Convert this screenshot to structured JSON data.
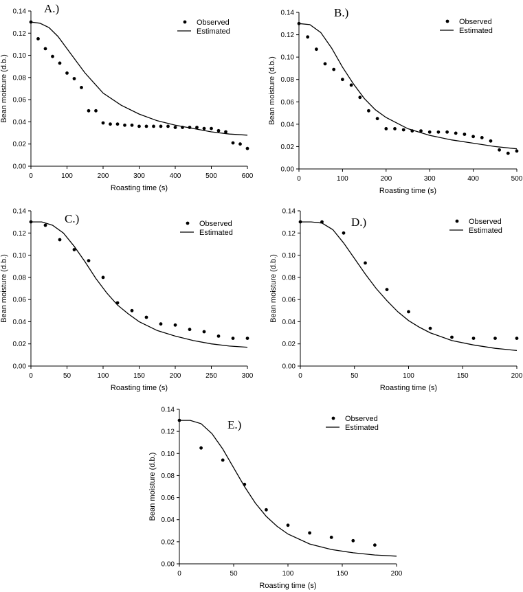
{
  "figure": {
    "y_tick_format_decimals": 2
  },
  "chart_data": [
    {
      "panel": "A.)",
      "type": "scatter",
      "xlabel": "Roasting time (s)",
      "ylabel": "Bean moisture (d.b.)",
      "xlim": [
        0,
        600
      ],
      "ylim": [
        0,
        0.14
      ],
      "xticks": [
        0,
        100,
        200,
        300,
        400,
        500,
        600
      ],
      "yticks": [
        0,
        0.02,
        0.04,
        0.06,
        0.08,
        0.1,
        0.12,
        0.14
      ],
      "legend": {
        "position": "top-right",
        "entries": [
          "Observed",
          "Estimated"
        ]
      },
      "series": [
        {
          "name": "Observed",
          "kind": "points",
          "x": [
            0,
            20,
            40,
            60,
            80,
            100,
            120,
            140,
            160,
            180,
            200,
            220,
            240,
            260,
            280,
            300,
            320,
            340,
            360,
            380,
            400,
            420,
            440,
            460,
            480,
            500,
            520,
            540,
            560,
            580,
            600
          ],
          "y": [
            0.13,
            0.115,
            0.106,
            0.099,
            0.093,
            0.084,
            0.079,
            0.071,
            0.05,
            0.05,
            0.039,
            0.038,
            0.038,
            0.037,
            0.037,
            0.036,
            0.036,
            0.036,
            0.036,
            0.036,
            0.035,
            0.035,
            0.035,
            0.035,
            0.034,
            0.034,
            0.032,
            0.031,
            0.021,
            0.02,
            0.016
          ]
        },
        {
          "name": "Estimated",
          "kind": "line",
          "x": [
            0,
            25,
            50,
            75,
            100,
            125,
            150,
            175,
            200,
            250,
            300,
            350,
            400,
            450,
            500,
            550,
            600
          ],
          "y": [
            0.13,
            0.129,
            0.125,
            0.117,
            0.106,
            0.095,
            0.084,
            0.075,
            0.066,
            0.055,
            0.047,
            0.041,
            0.037,
            0.034,
            0.031,
            0.029,
            0.028
          ]
        }
      ]
    },
    {
      "panel": "B.)",
      "type": "scatter",
      "xlabel": "Roasting time (s)",
      "ylabel": "Bean moisture (d.b.)",
      "xlim": [
        0,
        500
      ],
      "ylim": [
        0,
        0.14
      ],
      "xticks": [
        0,
        100,
        200,
        300,
        400,
        500
      ],
      "yticks": [
        0,
        0.02,
        0.04,
        0.06,
        0.08,
        0.1,
        0.12,
        0.14
      ],
      "legend": {
        "position": "top-right",
        "entries": [
          "Observed",
          "Estimated"
        ]
      },
      "series": [
        {
          "name": "Observed",
          "kind": "points",
          "x": [
            0,
            20,
            40,
            60,
            80,
            100,
            120,
            140,
            160,
            180,
            200,
            220,
            240,
            260,
            280,
            300,
            320,
            340,
            360,
            380,
            400,
            420,
            440,
            460,
            480,
            500
          ],
          "y": [
            0.13,
            0.118,
            0.107,
            0.094,
            0.089,
            0.08,
            0.075,
            0.064,
            0.052,
            0.045,
            0.036,
            0.036,
            0.035,
            0.034,
            0.034,
            0.033,
            0.033,
            0.033,
            0.032,
            0.031,
            0.029,
            0.028,
            0.025,
            0.017,
            0.014,
            0.016
          ]
        },
        {
          "name": "Estimated",
          "kind": "line",
          "x": [
            0,
            25,
            50,
            75,
            100,
            125,
            150,
            175,
            200,
            250,
            300,
            350,
            400,
            450,
            500
          ],
          "y": [
            0.13,
            0.129,
            0.122,
            0.108,
            0.091,
            0.076,
            0.063,
            0.053,
            0.046,
            0.036,
            0.03,
            0.026,
            0.023,
            0.02,
            0.018
          ]
        }
      ]
    },
    {
      "panel": "C.)",
      "type": "scatter",
      "xlabel": "Roasting time (s)",
      "ylabel": "Bean moisture (d.b.)",
      "xlim": [
        0,
        300
      ],
      "ylim": [
        0,
        0.14
      ],
      "xticks": [
        0,
        50,
        100,
        150,
        200,
        250,
        300
      ],
      "yticks": [
        0,
        0.02,
        0.04,
        0.06,
        0.08,
        0.1,
        0.12,
        0.14
      ],
      "legend": {
        "position": "top-right",
        "entries": [
          "Observed",
          "Estimated"
        ]
      },
      "series": [
        {
          "name": "Observed",
          "kind": "points",
          "x": [
            0,
            20,
            40,
            60,
            80,
            100,
            120,
            140,
            160,
            180,
            200,
            220,
            240,
            260,
            280,
            300
          ],
          "y": [
            0.13,
            0.127,
            0.114,
            0.105,
            0.095,
            0.08,
            0.057,
            0.05,
            0.044,
            0.038,
            0.037,
            0.033,
            0.031,
            0.027,
            0.025,
            0.025
          ]
        },
        {
          "name": "Estimated",
          "kind": "line",
          "x": [
            0,
            15,
            30,
            45,
            60,
            75,
            90,
            105,
            120,
            135,
            150,
            175,
            200,
            225,
            250,
            275,
            300
          ],
          "y": [
            0.13,
            0.13,
            0.127,
            0.12,
            0.108,
            0.094,
            0.079,
            0.066,
            0.055,
            0.047,
            0.04,
            0.032,
            0.027,
            0.023,
            0.02,
            0.018,
            0.017
          ]
        }
      ]
    },
    {
      "panel": "D.)",
      "type": "scatter",
      "xlabel": "Roasting time (s)",
      "ylabel": "Bean moisture (d.b.)",
      "xlim": [
        0,
        200
      ],
      "ylim": [
        0,
        0.14
      ],
      "xticks": [
        0,
        50,
        100,
        150,
        200
      ],
      "yticks": [
        0,
        0.02,
        0.04,
        0.06,
        0.08,
        0.1,
        0.12,
        0.14
      ],
      "legend": {
        "position": "top-right",
        "entries": [
          "Observed",
          "Estimated"
        ]
      },
      "series": [
        {
          "name": "Observed",
          "kind": "points",
          "x": [
            0,
            20,
            40,
            60,
            80,
            100,
            120,
            140,
            160,
            180,
            200
          ],
          "y": [
            0.13,
            0.13,
            0.12,
            0.093,
            0.069,
            0.049,
            0.034,
            0.026,
            0.025,
            0.025,
            0.025
          ]
        },
        {
          "name": "Estimated",
          "kind": "line",
          "x": [
            0,
            10,
            20,
            30,
            40,
            50,
            60,
            70,
            80,
            90,
            100,
            110,
            120,
            140,
            160,
            180,
            200
          ],
          "y": [
            0.13,
            0.13,
            0.129,
            0.123,
            0.111,
            0.097,
            0.083,
            0.07,
            0.059,
            0.049,
            0.041,
            0.035,
            0.03,
            0.023,
            0.019,
            0.016,
            0.014
          ]
        }
      ]
    },
    {
      "panel": "E.)",
      "type": "scatter",
      "xlabel": "Roasting time (s)",
      "ylabel": "Bean moisture (d.b.)",
      "xlim": [
        0,
        200
      ],
      "ylim": [
        0,
        0.14
      ],
      "xticks": [
        0,
        50,
        100,
        150,
        200
      ],
      "yticks": [
        0,
        0.02,
        0.04,
        0.06,
        0.08,
        0.1,
        0.12,
        0.14
      ],
      "legend": {
        "position": "top-right",
        "entries": [
          "Observed",
          "Estimated"
        ]
      },
      "series": [
        {
          "name": "Observed",
          "kind": "points",
          "x": [
            0,
            20,
            40,
            60,
            80,
            100,
            120,
            140,
            160,
            180
          ],
          "y": [
            0.13,
            0.105,
            0.094,
            0.072,
            0.049,
            0.035,
            0.028,
            0.024,
            0.021,
            0.017
          ]
        },
        {
          "name": "Estimated",
          "kind": "line",
          "x": [
            0,
            10,
            20,
            30,
            40,
            50,
            60,
            70,
            80,
            90,
            100,
            120,
            140,
            160,
            180,
            200
          ],
          "y": [
            0.13,
            0.13,
            0.127,
            0.118,
            0.104,
            0.087,
            0.07,
            0.055,
            0.043,
            0.034,
            0.027,
            0.018,
            0.013,
            0.01,
            0.008,
            0.007
          ]
        }
      ]
    }
  ]
}
